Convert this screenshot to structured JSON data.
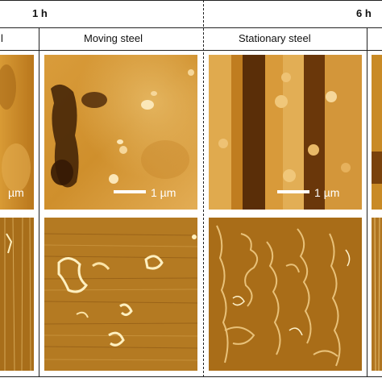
{
  "header": {
    "time_left": "1 h",
    "time_right": "6 h"
  },
  "columns": {
    "partial_left": "l",
    "moving": "Moving steel",
    "stationary": "Stationary steel"
  },
  "scale_bars": {
    "partial": "µm",
    "moving": "1 µm",
    "stationary": "1 µm"
  },
  "colors": {
    "topo_base": "#c98a25",
    "topo_dark": "#3a1d04",
    "topo_light": "#f6d79a",
    "phase_base": "#b27820",
    "phase_light": "#fff0c0"
  }
}
